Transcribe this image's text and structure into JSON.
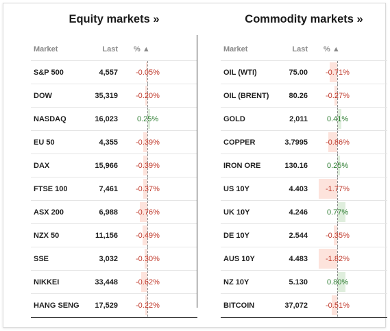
{
  "colors": {
    "negative": "#c0392b",
    "negative_bar": "#fde3dc",
    "positive": "#2e7d32",
    "positive_bar": "#dfeedd"
  },
  "header_icon": "sort-ascending-triangle",
  "equity": {
    "title": "Equity markets »",
    "columns": {
      "market": "Market",
      "last": "Last",
      "pct": "% ▲"
    },
    "rows": [
      {
        "market": "S&P 500",
        "last": "4,557",
        "pct_label": "-0.05%",
        "pct": -0.05
      },
      {
        "market": "DOW",
        "last": "35,319",
        "pct_label": "-0.20%",
        "pct": -0.2
      },
      {
        "market": "NASDAQ",
        "last": "16,023",
        "pct_label": "0.25%",
        "pct": 0.25
      },
      {
        "market": "EU 50",
        "last": "4,355",
        "pct_label": "-0.39%",
        "pct": -0.39
      },
      {
        "market": "DAX",
        "last": "15,966",
        "pct_label": "-0.39%",
        "pct": -0.39
      },
      {
        "market": "FTSE 100",
        "last": "7,461",
        "pct_label": "-0.37%",
        "pct": -0.37
      },
      {
        "market": "ASX 200",
        "last": "6,988",
        "pct_label": "-0.76%",
        "pct": -0.76
      },
      {
        "market": "NZX 50",
        "last": "11,156",
        "pct_label": "-0.49%",
        "pct": -0.49
      },
      {
        "market": "SSE",
        "last": "3,032",
        "pct_label": "-0.30%",
        "pct": -0.3
      },
      {
        "market": "NIKKEI",
        "last": "33,448",
        "pct_label": "-0.62%",
        "pct": -0.62
      },
      {
        "market": "HANG SENG",
        "last": "17,529",
        "pct_label": "-0.22%",
        "pct": -0.22
      }
    ]
  },
  "commodity": {
    "title": "Commodity markets »",
    "columns": {
      "market": "Market",
      "last": "Last",
      "pct": "% ▲"
    },
    "rows": [
      {
        "market": "OIL (WTI)",
        "last": "75.00",
        "pct_label": "-0.71%",
        "pct": -0.71
      },
      {
        "market": "OIL (BRENT)",
        "last": "80.26",
        "pct_label": "-0.27%",
        "pct": -0.27
      },
      {
        "market": "GOLD",
        "last": "2,011",
        "pct_label": "0.41%",
        "pct": 0.41
      },
      {
        "market": "COPPER",
        "last": "3.7995",
        "pct_label": "-0.86%",
        "pct": -0.86
      },
      {
        "market": "IRON ORE",
        "last": "130.16",
        "pct_label": "0.25%",
        "pct": 0.25
      },
      {
        "market": "US 10Y",
        "last": "4.403",
        "pct_label": "-1.77%",
        "pct": -1.77
      },
      {
        "market": "UK 10Y",
        "last": "4.246",
        "pct_label": "0.77%",
        "pct": 0.77
      },
      {
        "market": "DE 10Y",
        "last": "2.544",
        "pct_label": "-0.35%",
        "pct": -0.35
      },
      {
        "market": "AUS 10Y",
        "last": "4.483",
        "pct_label": "-1.82%",
        "pct": -1.82
      },
      {
        "market": "NZ 10Y",
        "last": "5.130",
        "pct_label": "0.80%",
        "pct": 0.8
      },
      {
        "market": "BITCOIN",
        "last": "37,072",
        "pct_label": "-0.51%",
        "pct": -0.51
      }
    ]
  }
}
